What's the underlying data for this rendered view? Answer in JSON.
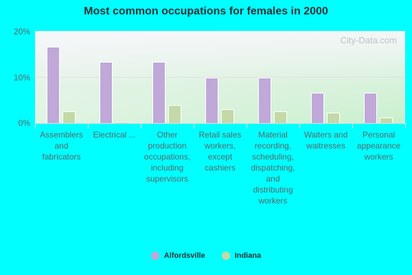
{
  "title": "Most common occupations for females in 2000",
  "watermark": "City-Data.com",
  "colors": {
    "Alfordsville": "#c0a8d8",
    "Indiana": "#c4d8a8"
  },
  "y_ticks": [
    "20%",
    "10%",
    "0%"
  ],
  "legend": [
    {
      "label": "Alfordsville",
      "color": "#c0a8d8"
    },
    {
      "label": "Indiana",
      "color": "#c4d8a8"
    }
  ],
  "chart_data": {
    "type": "bar",
    "title": "Most common occupations for females in 2000",
    "xlabel": "",
    "ylabel": "",
    "ylim": [
      0,
      20
    ],
    "y_tick_labels": [
      "0%",
      "10%",
      "20%"
    ],
    "grid": true,
    "legend_position": "bottom",
    "categories": [
      "Assemblers and fabricators",
      "Electrical ...",
      "Other production occupations, including supervisors",
      "Retail sales workers, except cashiers",
      "Material recording, scheduling, dispatching, and distributing workers",
      "Waiters and waitresses",
      "Personal appearance workers"
    ],
    "series": [
      {
        "name": "Alfordsville",
        "values": [
          16.6,
          13.3,
          13.3,
          9.9,
          9.9,
          6.6,
          6.6
        ]
      },
      {
        "name": "Indiana",
        "values": [
          2.5,
          0.3,
          3.9,
          3.0,
          2.5,
          2.2,
          1.2
        ]
      }
    ]
  }
}
